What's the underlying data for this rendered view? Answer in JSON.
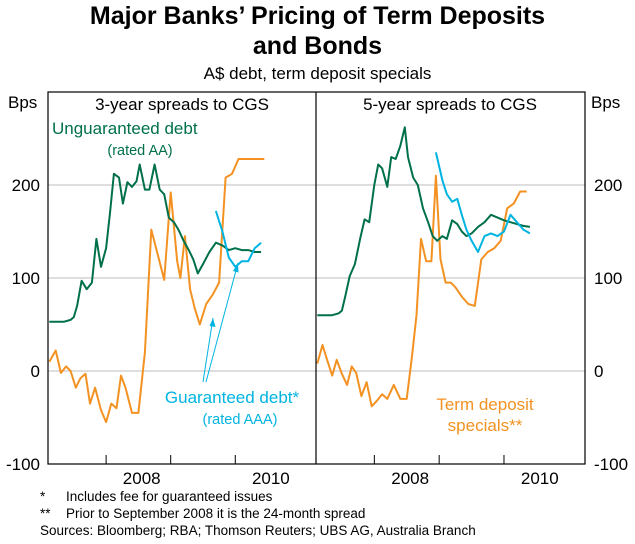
{
  "title_line1": "Major Banks’ Pricing of Term Deposits",
  "title_line2": "and Bonds",
  "subtitle": "A$ debt, term deposit specials",
  "unit_left": "Bps",
  "unit_right": "Bps",
  "notes": {
    "n1_mark": "*",
    "n1_text": "Includes fee for guaranteed issues",
    "n2_mark": "**",
    "n2_text": "Prior to September 2008 it is the 24-month spread",
    "sources": "Sources: Bloomberg; RBA; Thomson Reuters; UBS AG, Australia Branch"
  },
  "colors": {
    "unguaranteed": "#00704A",
    "guaranteed": "#00B4E1",
    "deposit": "#F39222",
    "grid": "#BEBEBE",
    "frame": "#000000"
  },
  "chart_data": {
    "type": "line",
    "y_ticks": [
      -100,
      0,
      100,
      200
    ],
    "ylim": [
      -100,
      300
    ],
    "panels": [
      {
        "title": "3-year spreads to CGS",
        "x_range": [
          2006.6,
          2010.75
        ],
        "x_ticks": [
          {
            "label": "2008",
            "value": 2008.5
          },
          {
            "label": "2010",
            "value": 2010.5
          }
        ],
        "year_dividers": [
          2007.5,
          2008.5,
          2009.5
        ],
        "series": [
          {
            "name": "Unguaranteed debt",
            "key": "unguaranteed",
            "label_line1": "Unguaranteed debt",
            "label_line2": "(rated AA)",
            "x": [
              2006.62,
              2006.75,
              2006.85,
              2006.95,
              2007.0,
              2007.05,
              2007.12,
              2007.2,
              2007.28,
              2007.35,
              2007.42,
              2007.5,
              2007.56,
              2007.62,
              2007.7,
              2007.76,
              2007.83,
              2007.9,
              2007.97,
              2008.02,
              2008.1,
              2008.17,
              2008.25,
              2008.33,
              2008.4,
              2008.47,
              2008.55,
              2008.62,
              2008.7,
              2008.78,
              2008.85,
              2008.92,
              2009.0,
              2009.1,
              2009.2,
              2009.3,
              2009.4,
              2009.5,
              2009.6,
              2009.7,
              2009.8,
              2009.9
            ],
            "y": [
              53,
              53,
              53,
              55,
              58,
              70,
              97,
              88,
              95,
              142,
              112,
              132,
              170,
              212,
              208,
              180,
              203,
              198,
              204,
              222,
              195,
              195,
              222,
              195,
              190,
              165,
              160,
              152,
              140,
              130,
              120,
              105,
              115,
              128,
              138,
              135,
              130,
              132,
              130,
              130,
              128,
              128
            ]
          },
          {
            "name": "Guaranteed debt",
            "key": "guaranteed",
            "label_line1": "Guaranteed debt*",
            "label_line2": "(rated AAA)",
            "x": [
              2009.2,
              2009.3,
              2009.4,
              2009.5,
              2009.55,
              2009.6,
              2009.7,
              2009.8,
              2009.9
            ],
            "y": [
              172,
              150,
              122,
              112,
              115,
              118,
              118,
              132,
              138
            ]
          },
          {
            "name": "Term deposit specials",
            "key": "deposit",
            "x": [
              2006.62,
              2006.72,
              2006.8,
              2006.88,
              2006.95,
              2007.03,
              2007.1,
              2007.18,
              2007.25,
              2007.33,
              2007.42,
              2007.5,
              2007.58,
              2007.66,
              2007.73,
              2007.8,
              2007.9,
              2008.0,
              2008.1,
              2008.2,
              2008.3,
              2008.4,
              2008.5,
              2008.6,
              2008.65,
              2008.72,
              2008.8,
              2008.87,
              2008.95,
              2009.05,
              2009.15,
              2009.25,
              2009.35,
              2009.45,
              2009.55,
              2009.65,
              2009.75,
              2009.85,
              2009.95
            ],
            "y": [
              10,
              22,
              -2,
              5,
              0,
              -18,
              -8,
              -3,
              -35,
              -18,
              -42,
              -55,
              -35,
              -40,
              -5,
              -18,
              -45,
              -45,
              20,
              152,
              125,
              98,
              192,
              118,
              100,
              145,
              88,
              68,
              50,
              72,
              82,
              95,
              208,
              212,
              228,
              228,
              228,
              228,
              228
            ]
          }
        ]
      },
      {
        "title": "5-year spreads to CGS",
        "x_range": [
          2006.6,
          2010.75
        ],
        "x_ticks": [
          {
            "label": "2008",
            "value": 2008.5
          },
          {
            "label": "2010",
            "value": 2010.5
          }
        ],
        "year_dividers": [
          2007.5,
          2008.5,
          2009.5
        ],
        "series": [
          {
            "name": "Unguaranteed debt",
            "key": "unguaranteed",
            "x": [
              2006.62,
              2006.75,
              2006.85,
              2006.95,
              2007.0,
              2007.05,
              2007.12,
              2007.2,
              2007.28,
              2007.35,
              2007.42,
              2007.5,
              2007.56,
              2007.62,
              2007.7,
              2007.76,
              2007.83,
              2007.9,
              2007.97,
              2008.02,
              2008.1,
              2008.17,
              2008.25,
              2008.33,
              2008.4,
              2008.47,
              2008.55,
              2008.62,
              2008.7,
              2008.78,
              2008.85,
              2008.92,
              2009.0,
              2009.1,
              2009.2,
              2009.3,
              2009.4,
              2009.5,
              2009.6,
              2009.7,
              2009.8,
              2009.9
            ],
            "y": [
              60,
              60,
              60,
              62,
              65,
              80,
              102,
              115,
              142,
              163,
              160,
              200,
              222,
              218,
              198,
              230,
              228,
              242,
              262,
              230,
              208,
              200,
              175,
              160,
              145,
              140,
              145,
              142,
              162,
              158,
              150,
              145,
              148,
              155,
              160,
              168,
              165,
              162,
              160,
              158,
              156,
              155
            ]
          },
          {
            "name": "Guaranteed debt",
            "key": "guaranteed",
            "x": [
              2008.45,
              2008.55,
              2008.62,
              2008.7,
              2008.78,
              2008.85,
              2008.92,
              2009.0,
              2009.1,
              2009.2,
              2009.3,
              2009.4,
              2009.5,
              2009.6,
              2009.7,
              2009.8,
              2009.9
            ],
            "y": [
              235,
              205,
              190,
              182,
              185,
              168,
              152,
              140,
              128,
              145,
              148,
              145,
              150,
              168,
              160,
              152,
              148
            ]
          },
          {
            "name": "Term deposit specials",
            "key": "deposit",
            "label_line1": "Term deposit",
            "label_line2": "specials**",
            "x": [
              2006.62,
              2006.7,
              2006.78,
              2006.85,
              2006.92,
              2007.0,
              2007.08,
              2007.15,
              2007.22,
              2007.3,
              2007.38,
              2007.46,
              2007.54,
              2007.62,
              2007.7,
              2007.8,
              2007.9,
              2008.0,
              2008.08,
              2008.15,
              2008.22,
              2008.3,
              2008.38,
              2008.45,
              2008.52,
              2008.6,
              2008.68,
              2008.75,
              2008.85,
              2008.95,
              2009.05,
              2009.15,
              2009.25,
              2009.35,
              2009.45,
              2009.55,
              2009.65,
              2009.75,
              2009.85
            ],
            "y": [
              8,
              28,
              10,
              -5,
              12,
              -3,
              -15,
              5,
              -2,
              -27,
              -12,
              -38,
              -32,
              -25,
              -30,
              -15,
              -30,
              -30,
              15,
              60,
              142,
              118,
              118,
              210,
              120,
              95,
              95,
              90,
              80,
              72,
              70,
              120,
              128,
              132,
              140,
              175,
              180,
              193,
              193
            ]
          }
        ]
      }
    ]
  }
}
